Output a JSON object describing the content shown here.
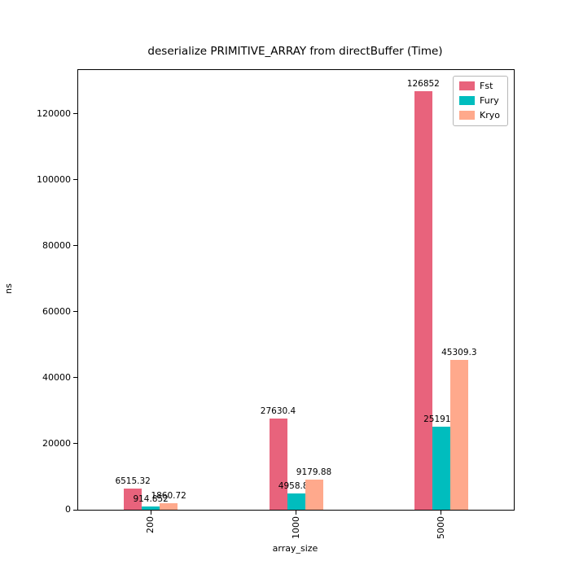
{
  "chart_data": {
    "type": "bar",
    "title": "deserialize PRIMITIVE_ARRAY from directBuffer (Time)",
    "xlabel": "array_size",
    "ylabel": "ns",
    "categories": [
      "200",
      "1000",
      "5000"
    ],
    "series": [
      {
        "name": "Fst",
        "color": "#e8637c",
        "values": [
          6515.32,
          27630.4,
          126852
        ],
        "labels": [
          "6515.32",
          "27630.4",
          "126852"
        ]
      },
      {
        "name": "Fury",
        "color": "#00bdbe",
        "values": [
          914.852,
          4958.87,
          25191.1
        ],
        "labels": [
          "914.852",
          "4958.87",
          "25191.1"
        ]
      },
      {
        "name": "Kryo",
        "color": "#ffa98c",
        "values": [
          1860.72,
          9179.88,
          45309.3
        ],
        "labels": [
          "1860.72",
          "9179.88",
          "45309.3"
        ]
      }
    ],
    "ylim": [
      0,
      133200
    ],
    "yticks": [
      0,
      20000,
      40000,
      60000,
      80000,
      100000,
      120000
    ],
    "ytick_labels": [
      "0",
      "20000",
      "40000",
      "60000",
      "80000",
      "100000",
      "120000"
    ],
    "legend_position": "upper right",
    "grid": false
  }
}
